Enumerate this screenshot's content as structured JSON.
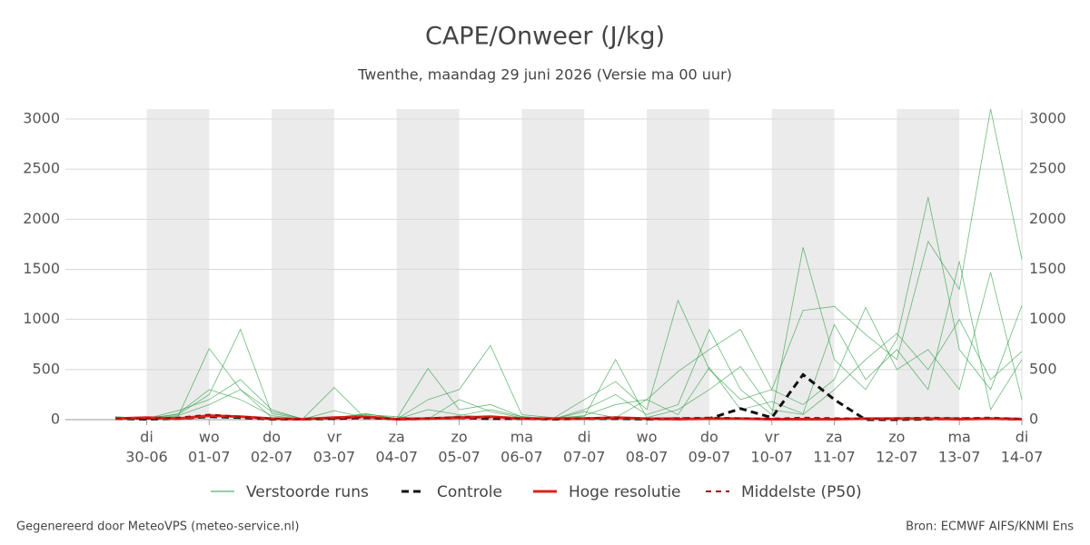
{
  "chart_data": {
    "type": "line",
    "title": "CAPE/Onweer (J/kg)",
    "subtitle": "Twenthe, maandag 29 juni 2026 (Versie ma 00 uur)",
    "footer_left": "Gegenereerd door MeteoVPS (meteo-service.nl)",
    "footer_right": "Bron: ECMWF AIFS/KNMI Ens",
    "xlim": [
      -1.3,
      14
    ],
    "ylim": [
      0,
      3100
    ],
    "yticks": [
      0,
      500,
      1000,
      1500,
      2000,
      2500,
      3000
    ],
    "xticks": [
      {
        "value": 0,
        "label": [
          "di",
          "30-06"
        ]
      },
      {
        "value": 1,
        "label": [
          "wo",
          "01-07"
        ]
      },
      {
        "value": 2,
        "label": [
          "do",
          "02-07"
        ]
      },
      {
        "value": 3,
        "label": [
          "vr",
          "03-07"
        ]
      },
      {
        "value": 4,
        "label": [
          "za",
          "04-07"
        ]
      },
      {
        "value": 5,
        "label": [
          "zo",
          "05-07"
        ]
      },
      {
        "value": 6,
        "label": [
          "ma",
          "06-07"
        ]
      },
      {
        "value": 7,
        "label": [
          "di",
          "07-07"
        ]
      },
      {
        "value": 8,
        "label": [
          "wo",
          "08-07"
        ]
      },
      {
        "value": 9,
        "label": [
          "do",
          "09-07"
        ]
      },
      {
        "value": 10,
        "label": [
          "vr",
          "10-07"
        ]
      },
      {
        "value": 11,
        "label": [
          "za",
          "11-07"
        ]
      },
      {
        "value": 12,
        "label": [
          "zo",
          "12-07"
        ]
      },
      {
        "value": 13,
        "label": [
          "ma",
          "13-07"
        ]
      },
      {
        "value": 14,
        "label": [
          "di",
          "14-07"
        ]
      }
    ],
    "grid": true,
    "x": [
      -0.5,
      0,
      0.5,
      1,
      1.5,
      2,
      2.5,
      3,
      3.5,
      4,
      4.5,
      5,
      5.5,
      6,
      6.5,
      7,
      7.5,
      8,
      8.5,
      9,
      9.5,
      10,
      10.5,
      11,
      11.5,
      12,
      12.5,
      13,
      13.5,
      14
    ],
    "series": [
      {
        "name": "Verstoorde runs",
        "color": "#2e9e44",
        "dash": "solid",
        "width": 0.8,
        "members": [
          [
            20,
            10,
            40,
            150,
            300,
            80,
            10,
            5,
            60,
            10,
            5,
            40,
            100,
            30,
            10,
            40,
            150,
            200,
            480,
            700,
            900,
            300,
            1090,
            1130,
            850,
            600,
            1780,
            1300,
            3100,
            1600
          ],
          [
            10,
            5,
            60,
            300,
            200,
            40,
            5,
            90,
            20,
            5,
            100,
            50,
            20,
            10,
            5,
            100,
            250,
            50,
            150,
            900,
            300,
            50,
            1720,
            600,
            300,
            800,
            2220,
            700,
            300,
            1140
          ],
          [
            30,
            10,
            90,
            200,
            400,
            100,
            5,
            10,
            50,
            30,
            5,
            200,
            80,
            20,
            10,
            200,
            380,
            100,
            1190,
            500,
            200,
            300,
            150,
            400,
            1120,
            500,
            700,
            300,
            1470,
            200
          ],
          [
            5,
            20,
            50,
            250,
            900,
            60,
            10,
            320,
            10,
            5,
            200,
            300,
            740,
            50,
            20,
            30,
            600,
            20,
            100,
            300,
            530,
            100,
            50,
            300,
            600,
            860,
            500,
            1000,
            400,
            680
          ],
          [
            10,
            5,
            30,
            710,
            300,
            20,
            5,
            20,
            60,
            10,
            510,
            100,
            150,
            30,
            5,
            80,
            20,
            200,
            50,
            520,
            100,
            180,
            60,
            950,
            400,
            700,
            300,
            1580,
            100,
            600
          ]
        ]
      },
      {
        "name": "Controle",
        "color": "#111111",
        "dash": "8,5",
        "width": 3,
        "values": [
          10,
          5,
          10,
          30,
          20,
          5,
          5,
          10,
          20,
          5,
          10,
          20,
          10,
          10,
          5,
          10,
          10,
          5,
          10,
          10,
          110,
          20,
          450,
          200,
          0,
          0,
          5,
          10,
          10,
          5
        ]
      },
      {
        "name": "Hoge resolutie",
        "color": "#e0201b",
        "dash": "solid",
        "width": 3,
        "values": [
          10,
          20,
          10,
          40,
          30,
          10,
          5,
          20,
          30,
          5,
          10,
          20,
          30,
          10,
          10,
          10,
          20,
          10,
          5,
          10,
          10,
          5,
          5,
          5,
          10,
          10,
          10,
          5,
          10,
          5
        ]
      },
      {
        "name": "Middelste (P50)",
        "color": "#a01010",
        "dash": "6,5",
        "width": 2,
        "values": [
          15,
          10,
          20,
          50,
          30,
          10,
          5,
          15,
          20,
          5,
          15,
          25,
          20,
          10,
          5,
          15,
          20,
          10,
          15,
          20,
          15,
          10,
          20,
          15,
          10,
          15,
          20,
          15,
          20,
          10
        ]
      }
    ]
  }
}
